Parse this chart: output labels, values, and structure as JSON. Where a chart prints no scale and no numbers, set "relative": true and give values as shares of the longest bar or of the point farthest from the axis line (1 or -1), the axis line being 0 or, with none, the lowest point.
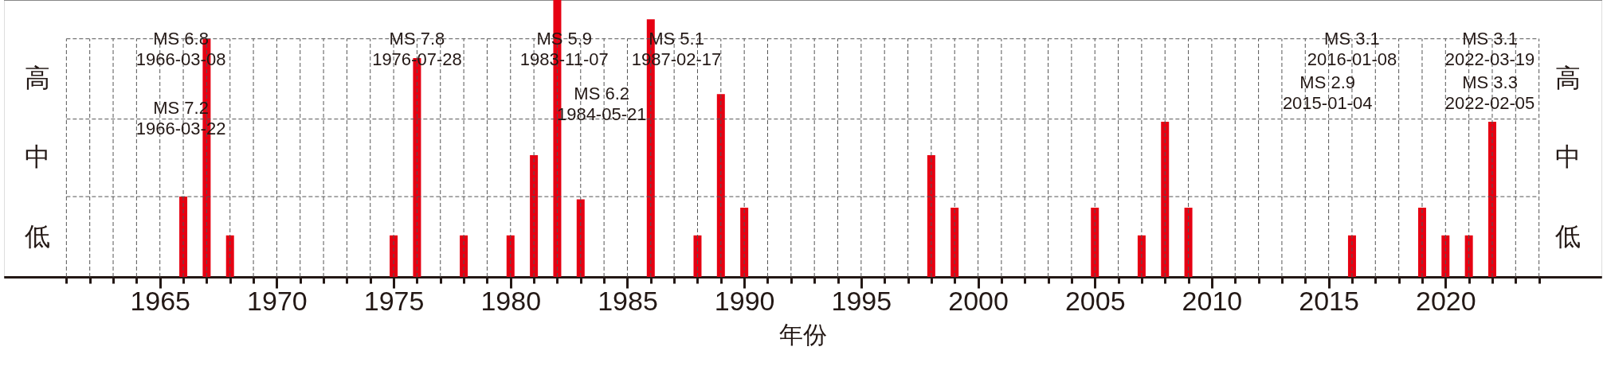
{
  "chart_data": {
    "type": "bar",
    "relative": true,
    "xlabel": "年份",
    "x": [
      1966,
      1967,
      1968,
      1975,
      1976,
      1978,
      1980,
      1981,
      1982,
      1983,
      1986,
      1988,
      1989,
      1990,
      1998,
      1999,
      2005,
      2007,
      2008,
      2009,
      2016,
      2019,
      2020,
      2021,
      2022
    ],
    "values": [
      0.29,
      0.86,
      0.15,
      0.15,
      0.79,
      0.15,
      0.15,
      0.44,
      1,
      0.28,
      0.93,
      0.15,
      0.66,
      0.25,
      0.44,
      0.25,
      0.25,
      0.15,
      0.56,
      0.25,
      0.15,
      0.25,
      0.15,
      0.15,
      0.56
    ],
    "color": "#e60012",
    "xlim": [
      1958.5,
      2026.5
    ],
    "xticks": [
      {
        "value": 1961,
        "label": null
      },
      {
        "value": 1962,
        "label": null
      },
      {
        "value": 1963,
        "label": null
      },
      {
        "value": 1964,
        "label": null
      },
      1965,
      {
        "value": 1966,
        "label": null
      },
      {
        "value": 1967,
        "label": null
      },
      {
        "value": 1968,
        "label": null
      },
      {
        "value": 1969,
        "label": null
      },
      1970,
      {
        "value": 1971,
        "label": null
      },
      {
        "value": 1972,
        "label": null
      },
      {
        "value": 1973,
        "label": null
      },
      {
        "value": 1974,
        "label": null
      },
      1975,
      {
        "value": 1976,
        "label": null
      },
      {
        "value": 1977,
        "label": null
      },
      {
        "value": 1978,
        "label": null
      },
      {
        "value": 1979,
        "label": null
      },
      1980,
      {
        "value": 1981,
        "label": null
      },
      {
        "value": 1982,
        "label": null
      },
      {
        "value": 1983,
        "label": null
      },
      {
        "value": 1984,
        "label": null
      },
      1985,
      {
        "value": 1986,
        "label": null
      },
      {
        "value": 1987,
        "label": null
      },
      {
        "value": 1988,
        "label": null
      },
      {
        "value": 1989,
        "label": null
      },
      1990,
      {
        "value": 1991,
        "label": null
      },
      {
        "value": 1992,
        "label": null
      },
      {
        "value": 1993,
        "label": null
      },
      {
        "value": 1994,
        "label": null
      },
      1995,
      {
        "value": 1996,
        "label": null
      },
      {
        "value": 1997,
        "label": null
      },
      {
        "value": 1998,
        "label": null
      },
      {
        "value": 1999,
        "label": null
      },
      2000,
      {
        "value": 2001,
        "label": null
      },
      {
        "value": 2002,
        "label": null
      },
      {
        "value": 2003,
        "label": null
      },
      {
        "value": 2004,
        "label": null
      },
      2005,
      {
        "value": 2006,
        "label": null
      },
      {
        "value": 2007,
        "label": null
      },
      {
        "value": 2008,
        "label": null
      },
      {
        "value": 2009,
        "label": null
      },
      2010,
      {
        "value": 2011,
        "label": null
      },
      {
        "value": 2012,
        "label": null
      },
      {
        "value": 2013,
        "label": null
      },
      {
        "value": 2014,
        "label": null
      },
      2015,
      {
        "value": 2016,
        "label": null
      },
      {
        "value": 2017,
        "label": null
      },
      {
        "value": 2018,
        "label": null
      },
      {
        "value": 2019,
        "label": null
      },
      2020,
      {
        "value": 2021,
        "label": null
      },
      {
        "value": 2022,
        "label": null
      },
      {
        "value": 2023,
        "label": null
      },
      {
        "value": 2024,
        "label": null
      }
    ],
    "grid": "x",
    "ref_lines": [
      {
        "axis": "y",
        "value": 0.29,
        "label": null,
        "line_style": "dashed"
      },
      {
        "axis": "y",
        "value": 0.57,
        "label": null,
        "line_style": "dashed"
      },
      {
        "axis": "y",
        "value": 0.86,
        "label": null,
        "line_style": "dashed"
      }
    ],
    "annotations": [
      "MS 6.8\n1966-03-08",
      "MS 7.2\n1966-03-22",
      "MS 7.8\n1976-07-28",
      "MS 5.9\n1983-11-07",
      "MS 6.2\n1984-05-21",
      "MS 5.1\n1987-02-17",
      "MS 3.1\n2016-01-08",
      "MS 2.9\n2015-01-04",
      "MS 3.1\n2022-03-19",
      "MS 3.3\n2022-02-05",
      "低",
      "中",
      "高",
      "低",
      "中",
      "高"
    ]
  }
}
